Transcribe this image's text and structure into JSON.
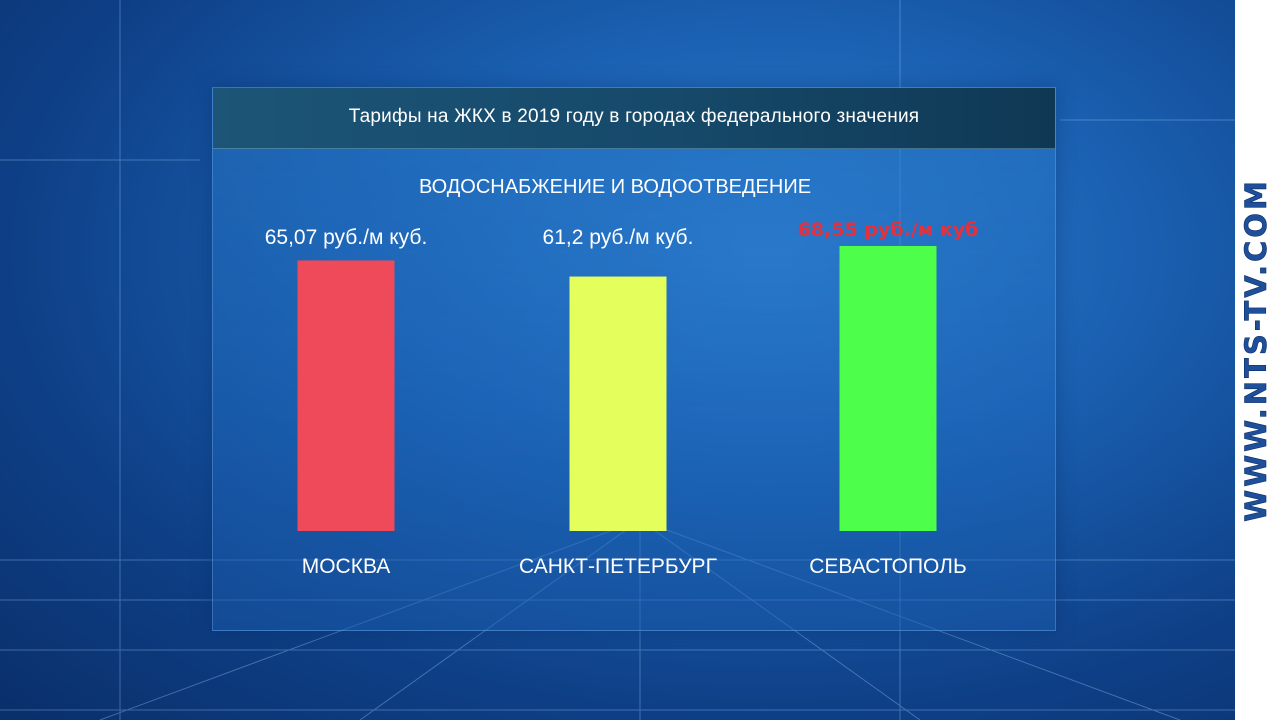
{
  "panel": {
    "title": "Тарифы на ЖКХ в 2019 году в городах федерального значения"
  },
  "watermark": "WWW.NTS-TV.COM",
  "chart_data": {
    "type": "bar",
    "title": "ВОДОСНАБЖЕНИЕ И ВОДООТВЕДЕНИЕ",
    "categories": [
      "МОСКВА",
      "САНКТ-ПЕТЕРБУРГ",
      "СЕВАСТОПОЛЬ"
    ],
    "values": [
      65.07,
      61.2,
      68.55
    ],
    "value_labels": [
      "65,07 руб./м куб.",
      "61,2 руб./м куб.",
      "68,55 руб./м куб"
    ],
    "bar_colors": [
      "#ef4a5a",
      "#e4ff5c",
      "#4dff4a"
    ],
    "value_label_colors": [
      "#ffffff",
      "#ffffff",
      "#e6303c"
    ],
    "xlabel": "",
    "ylabel": ""
  }
}
